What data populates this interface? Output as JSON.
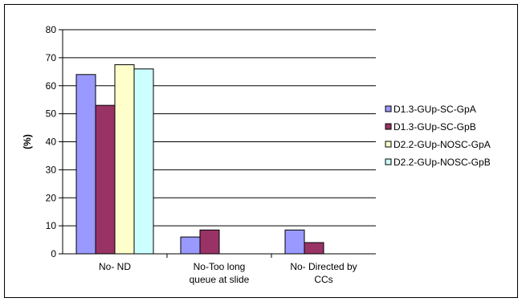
{
  "chart_data": {
    "type": "bar",
    "title": "",
    "xlabel": "",
    "ylabel": "(%)",
    "ylim": [
      0,
      80
    ],
    "yticks": [
      0,
      10,
      20,
      30,
      40,
      50,
      60,
      70,
      80
    ],
    "grid": true,
    "legend_position": "right",
    "categories": [
      [
        "No- ND"
      ],
      [
        "No-Too long",
        "queue at slide"
      ],
      [
        "No- Directed by",
        "CCs"
      ]
    ],
    "series": [
      {
        "name": "D1.3-GUp-SC-GpA",
        "color": "#9999ff",
        "values": [
          64,
          6,
          8.5
        ]
      },
      {
        "name": "D1.3-GUp-SC-GpB",
        "color": "#993366",
        "values": [
          53,
          8.5,
          4
        ]
      },
      {
        "name": "D2.2-GUp-NOSC-GpA",
        "color": "#ffffcc",
        "values": [
          67.5,
          0,
          0
        ]
      },
      {
        "name": "D2.2-GUp-NOSC-GpB",
        "color": "#ccffff",
        "values": [
          66,
          0,
          0
        ]
      }
    ]
  }
}
